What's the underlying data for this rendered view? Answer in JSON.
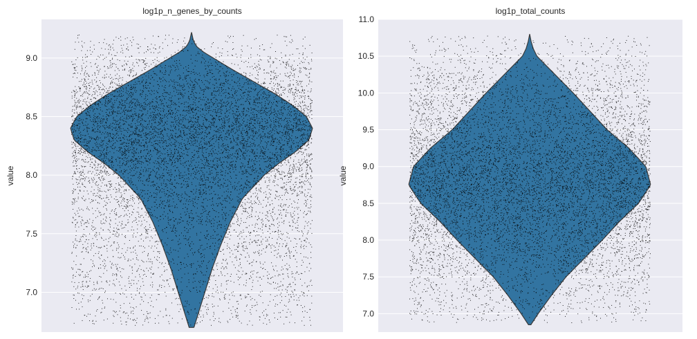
{
  "chart_data": [
    {
      "type": "violin",
      "title": "log1p_n_genes_by_counts",
      "xlabel": "",
      "ylabel": "value",
      "ylim": [
        6.66,
        9.33
      ],
      "yticks": [
        "7.0",
        "7.5",
        "8.0",
        "8.5",
        "9.0"
      ],
      "ytick_values": [
        7.0,
        7.5,
        8.0,
        8.5,
        9.0
      ],
      "grid": true,
      "violin_range": [
        6.7,
        9.22
      ],
      "violin_profile": [
        [
          6.7,
          0.02
        ],
        [
          6.8,
          0.05
        ],
        [
          7.0,
          0.11
        ],
        [
          7.2,
          0.17
        ],
        [
          7.4,
          0.24
        ],
        [
          7.6,
          0.32
        ],
        [
          7.8,
          0.42
        ],
        [
          8.0,
          0.6
        ],
        [
          8.1,
          0.72
        ],
        [
          8.2,
          0.86
        ],
        [
          8.3,
          0.97
        ],
        [
          8.4,
          1.0
        ],
        [
          8.5,
          0.95
        ],
        [
          8.6,
          0.83
        ],
        [
          8.7,
          0.68
        ],
        [
          8.8,
          0.51
        ],
        [
          8.9,
          0.34
        ],
        [
          9.0,
          0.18
        ],
        [
          9.05,
          0.1
        ],
        [
          9.1,
          0.04
        ],
        [
          9.15,
          0.015
        ],
        [
          9.22,
          0.0
        ]
      ],
      "scatter_y_range": [
        6.72,
        9.2
      ],
      "color": "#3274a1"
    },
    {
      "type": "violin",
      "title": "log1p_total_counts",
      "xlabel": "",
      "ylabel": "value",
      "ylim": [
        6.75,
        11.0
      ],
      "yticks": [
        "7.0",
        "7.5",
        "8.0",
        "8.5",
        "9.0",
        "9.5",
        "10.0",
        "10.5",
        "11.0"
      ],
      "ytick_values": [
        7.0,
        7.5,
        8.0,
        8.5,
        9.0,
        9.5,
        10.0,
        10.5,
        11.0
      ],
      "grid": true,
      "violin_range": [
        6.85,
        10.8
      ],
      "violin_profile": [
        [
          6.85,
          0.01
        ],
        [
          7.0,
          0.07
        ],
        [
          7.25,
          0.18
        ],
        [
          7.5,
          0.3
        ],
        [
          7.75,
          0.45
        ],
        [
          8.0,
          0.6
        ],
        [
          8.25,
          0.74
        ],
        [
          8.5,
          0.9
        ],
        [
          8.75,
          1.0
        ],
        [
          9.0,
          0.96
        ],
        [
          9.25,
          0.82
        ],
        [
          9.5,
          0.64
        ],
        [
          9.75,
          0.5
        ],
        [
          10.0,
          0.36
        ],
        [
          10.25,
          0.21
        ],
        [
          10.4,
          0.12
        ],
        [
          10.5,
          0.06
        ],
        [
          10.6,
          0.03
        ],
        [
          10.7,
          0.012
        ],
        [
          10.8,
          0.0
        ]
      ],
      "scatter_y_range": [
        6.88,
        10.78
      ],
      "color": "#3274a1"
    }
  ],
  "style": {
    "background": "#eaeaf2",
    "grid_color": "#ffffff",
    "violin_color": "#3274a1",
    "violin_edge": "#3a3a3a",
    "point_color": "#000000"
  }
}
